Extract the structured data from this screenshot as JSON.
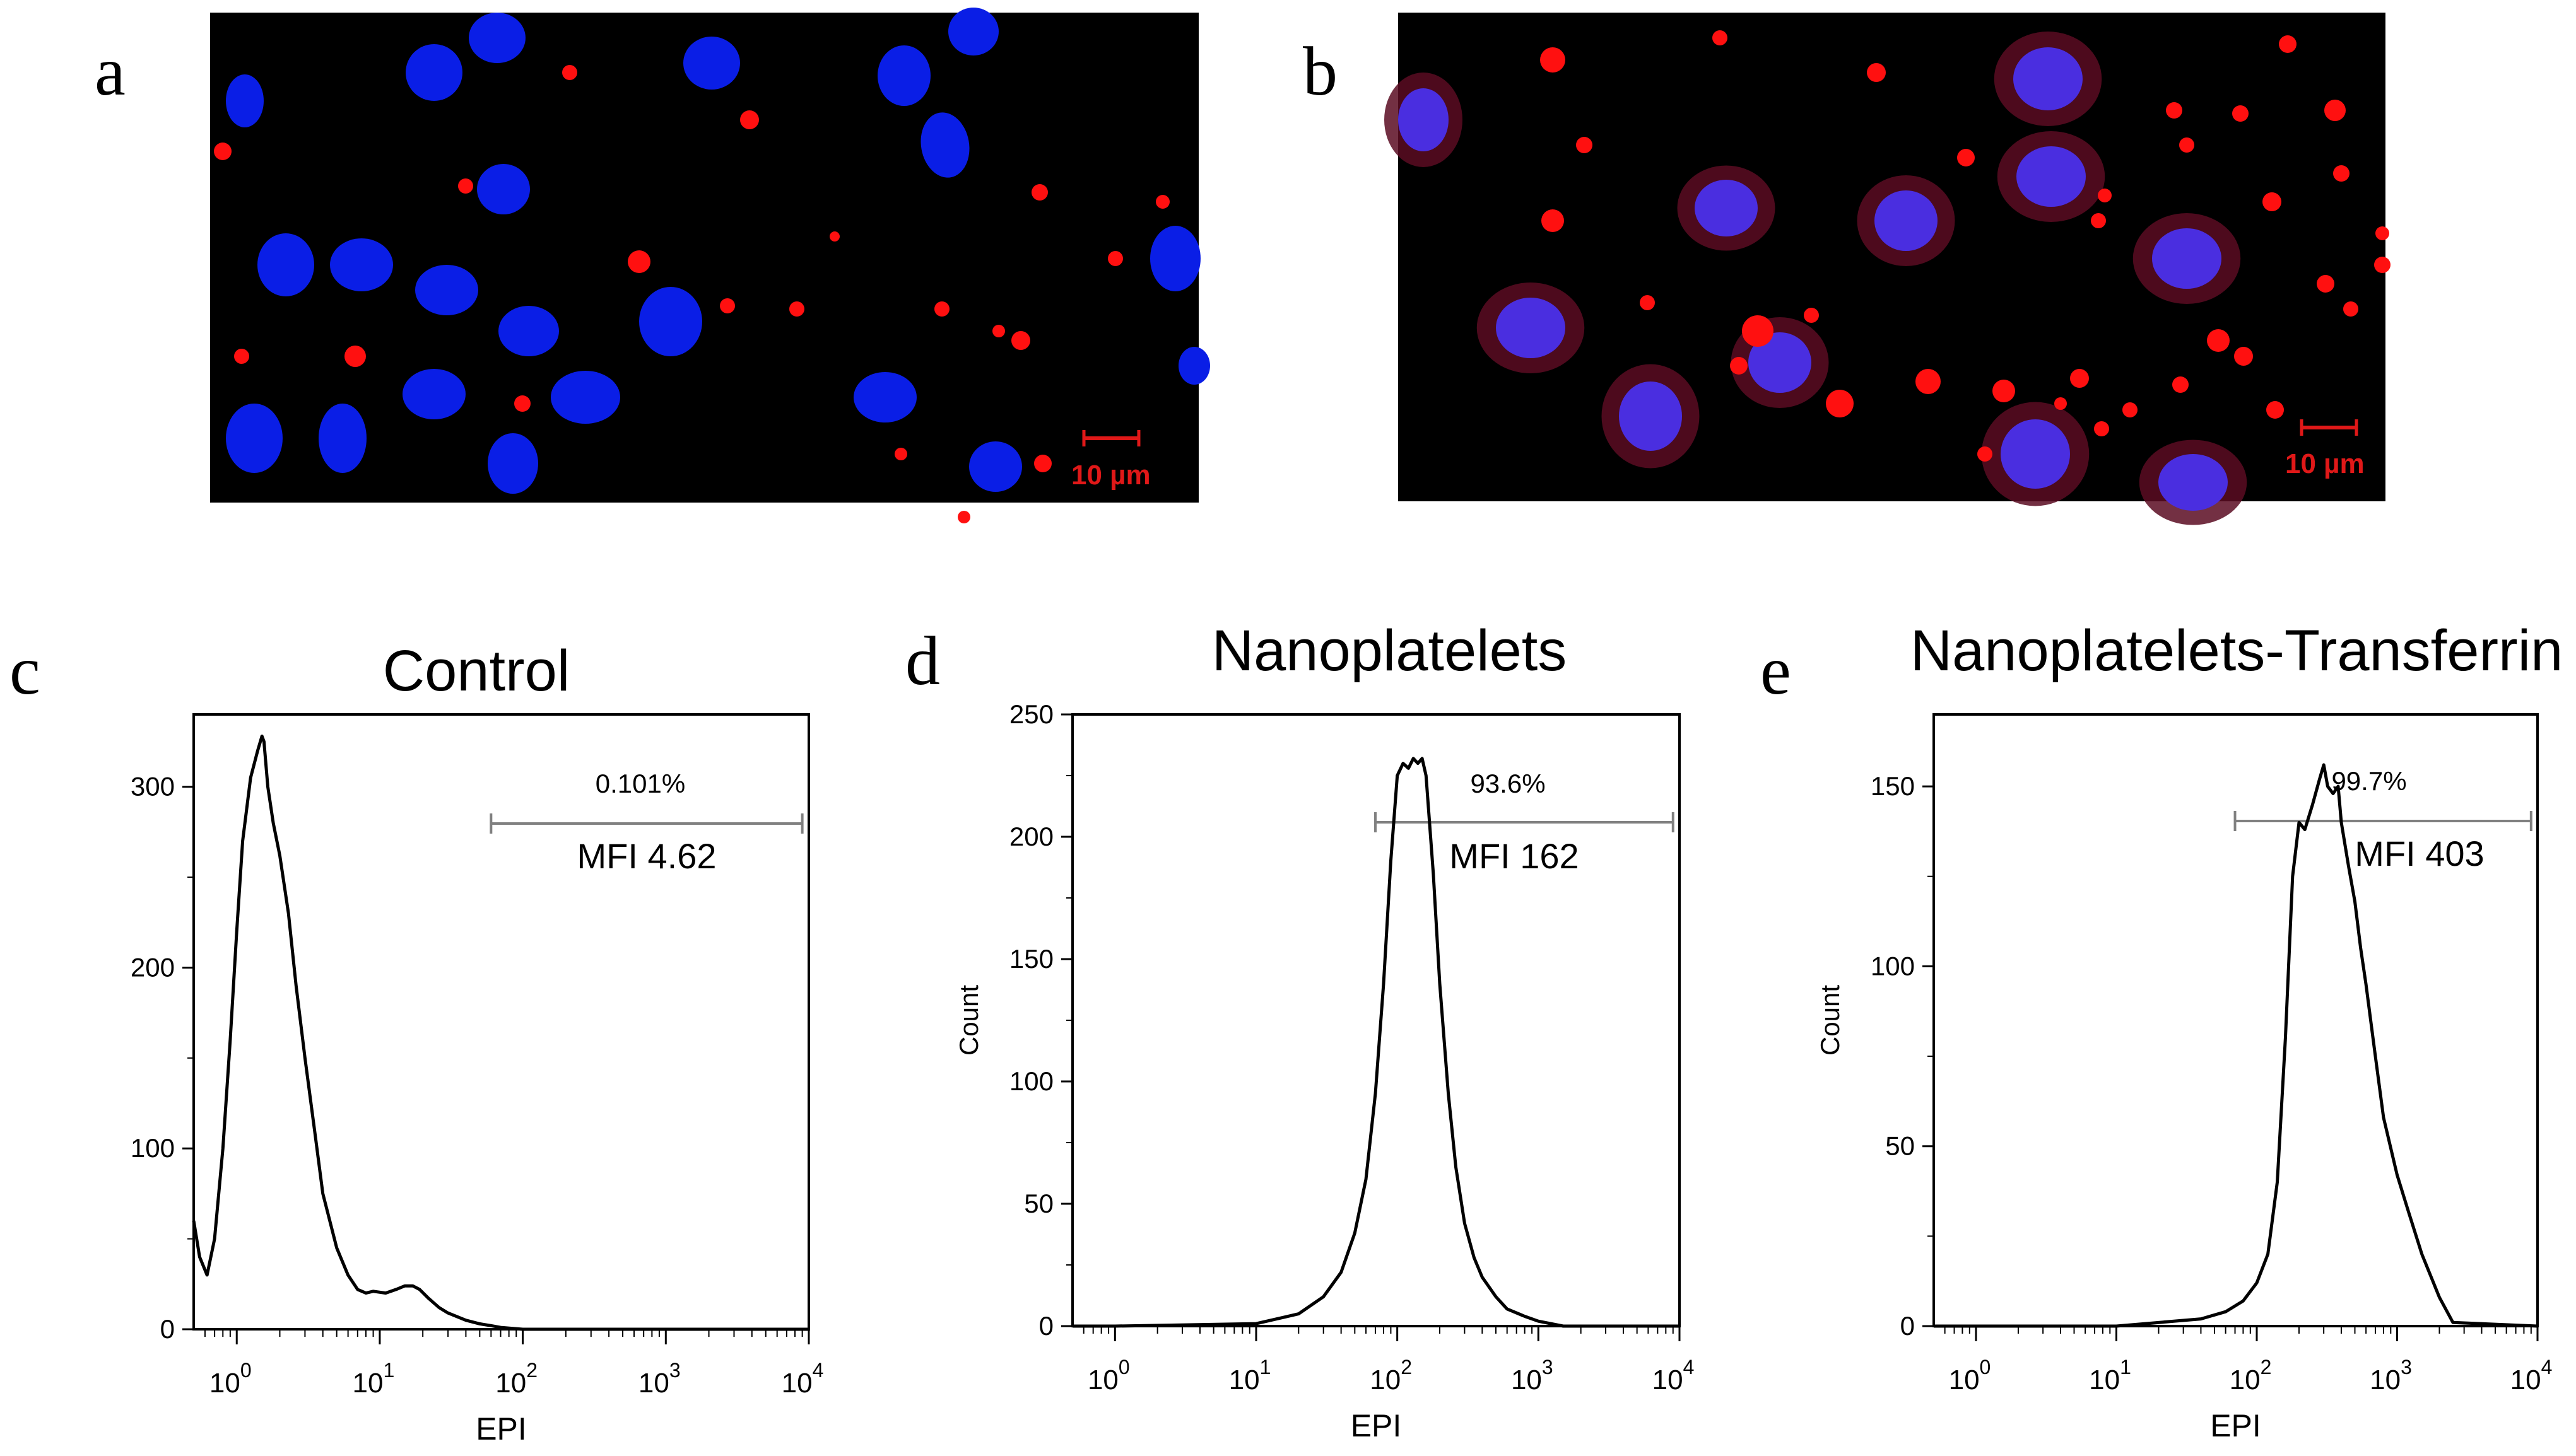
{
  "figure": {
    "panel_labels": [
      "a",
      "b",
      "c",
      "d",
      "e"
    ],
    "micrographs": [
      {
        "panel": "a",
        "scale_bar_label": "10 µm"
      },
      {
        "panel": "b",
        "scale_bar_label": "10 µm"
      }
    ]
  },
  "colors": {
    "nucleus": "#0a1ee6",
    "particle": "#ff1010",
    "background": "#000000",
    "scale_bar": "#e01818",
    "line": "#000000",
    "gate": "#808080"
  },
  "chart_data": [
    {
      "panel": "c",
      "type": "line",
      "title": "Control",
      "xlabel": "EPI",
      "ylabel": "",
      "xscale": "log",
      "xlim": [
        0.5,
        10000
      ],
      "ylim": [
        0,
        340
      ],
      "yticks": [
        0,
        100,
        200,
        300
      ],
      "xticks": [
        "10^0",
        "10^1",
        "10^2",
        "10^3",
        "10^4"
      ],
      "gate": {
        "from": 60,
        "to": 9000,
        "percent_label": "0.101%",
        "mfi_label": "MFI 4.62"
      },
      "series": [
        {
          "name": "Control",
          "x": [
            0.5,
            0.55,
            0.62,
            0.7,
            0.8,
            0.9,
            1.0,
            1.1,
            1.25,
            1.4,
            1.5,
            1.55,
            1.65,
            1.8,
            2.0,
            2.3,
            2.6,
            3.0,
            3.5,
            4.0,
            5.0,
            6.0,
            7.0,
            8.0,
            9.0,
            11.0,
            13.0,
            15.0,
            17.0,
            19.0,
            22.0,
            26.0,
            30.0,
            40.0,
            50.0,
            60.0,
            70.0,
            100.0,
            1000.0,
            10000.0
          ],
          "y": [
            60,
            40,
            30,
            50,
            100,
            160,
            220,
            270,
            305,
            320,
            328,
            325,
            300,
            280,
            262,
            230,
            190,
            150,
            110,
            75,
            45,
            30,
            22,
            20,
            21,
            20,
            22,
            24,
            24,
            22,
            17,
            12,
            9,
            5,
            3,
            2,
            1,
            0,
            0,
            0
          ]
        }
      ]
    },
    {
      "panel": "d",
      "type": "line",
      "title": "Nanoplatelets",
      "xlabel": "EPI",
      "ylabel": "Count",
      "xscale": "log",
      "xlim": [
        0.5,
        10000
      ],
      "ylim": [
        0,
        250
      ],
      "yticks": [
        0,
        50,
        100,
        150,
        200,
        250
      ],
      "xticks": [
        "10^0",
        "10^1",
        "10^2",
        "10^3",
        "10^4"
      ],
      "gate": {
        "from": 70,
        "to": 9000,
        "percent_label": "93.6%",
        "mfi_label": "MFI 162"
      },
      "series": [
        {
          "name": "Nanoplatelets",
          "x": [
            0.5,
            1.0,
            10.0,
            20.0,
            30.0,
            40.0,
            50.0,
            60.0,
            70.0,
            80.0,
            90.0,
            100.0,
            110.0,
            120.0,
            130.0,
            140.0,
            150.0,
            160.0,
            180.0,
            200.0,
            230.0,
            260.0,
            300.0,
            350.0,
            400.0,
            500.0,
            600.0,
            800.0,
            1000.0,
            1500.0,
            10000.0
          ],
          "y": [
            0,
            0,
            1,
            5,
            12,
            22,
            38,
            60,
            95,
            140,
            190,
            225,
            230,
            228,
            232,
            230,
            232,
            225,
            185,
            140,
            95,
            65,
            42,
            28,
            20,
            12,
            7,
            4,
            2,
            0,
            0
          ]
        }
      ]
    },
    {
      "panel": "e",
      "type": "line",
      "title": "Nanoplatelets-Transferrin",
      "xlabel": "EPI",
      "ylabel": "Count",
      "xscale": "log",
      "xlim": [
        0.5,
        10000
      ],
      "ylim": [
        0,
        170
      ],
      "yticks": [
        0,
        50,
        100,
        150
      ],
      "xticks": [
        "10^0",
        "10^1",
        "10^2",
        "10^3",
        "10^4"
      ],
      "gate": {
        "from": 70,
        "to": 9000,
        "percent_label": "99.7%",
        "mfi_label": "MFI 403"
      },
      "series": [
        {
          "name": "Nanoplatelets-Transferrin",
          "x": [
            0.5,
            10.0,
            40.0,
            60.0,
            80.0,
            100.0,
            120.0,
            140.0,
            160.0,
            180.0,
            200.0,
            220.0,
            250.0,
            280.0,
            300.0,
            320.0,
            350.0,
            380.0,
            400.0,
            450.0,
            500.0,
            550.0,
            600.0,
            700.0,
            800.0,
            1000.0,
            1200.0,
            1500.0,
            2000.0,
            2500.0,
            10000.0
          ],
          "y": [
            0,
            0,
            2,
            4,
            7,
            12,
            20,
            40,
            80,
            125,
            140,
            138,
            145,
            152,
            156,
            150,
            148,
            150,
            140,
            128,
            118,
            105,
            95,
            75,
            58,
            42,
            32,
            20,
            8,
            1,
            0
          ]
        }
      ]
    }
  ]
}
